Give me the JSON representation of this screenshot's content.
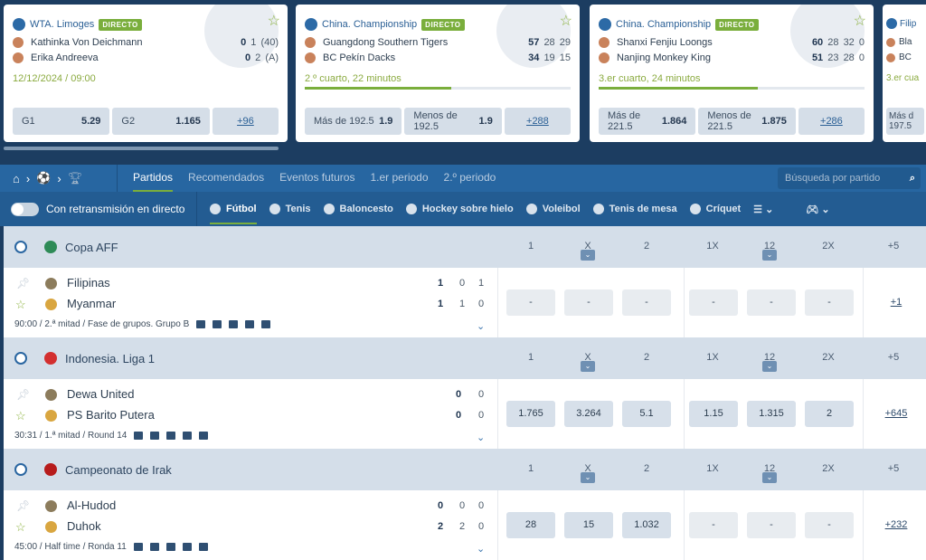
{
  "cards": [
    {
      "league": "WTA. Limoges",
      "badge": "DIRECTO",
      "sport_icon": "tennis-ball-icon",
      "teams": [
        "Kathinka Von Deichmann",
        "Erika Andreeva"
      ],
      "scores": [
        [
          "0",
          "1",
          "(40)"
        ],
        [
          "0",
          "2",
          "(A)"
        ]
      ],
      "status": "12/12/2024 / 09:00",
      "odds": [
        {
          "label": "G1",
          "value": "5.29"
        },
        {
          "label": "G2",
          "value": "1.165"
        }
      ],
      "more": "+96"
    },
    {
      "league": "China. Championship",
      "badge": "DIRECTO",
      "sport_icon": "basketball-icon",
      "teams": [
        "Guangdong Southern Tigers",
        "BC Pekín Dacks"
      ],
      "scores": [
        [
          "57",
          "28",
          "29"
        ],
        [
          "34",
          "19",
          "15"
        ]
      ],
      "status": "2.º cuarto, 22 minutos",
      "progress": 0.55,
      "odds": [
        {
          "label": "Más de 192.5",
          "value": "1.9"
        },
        {
          "label": "Menos de 192.5",
          "value": "1.9"
        }
      ],
      "more": "+288"
    },
    {
      "league": "China. Championship",
      "badge": "DIRECTO",
      "sport_icon": "basketball-icon",
      "teams": [
        "Shanxi Fenjiu Loongs",
        "Nanjing Monkey King"
      ],
      "scores": [
        [
          "60",
          "28",
          "32",
          "0"
        ],
        [
          "51",
          "23",
          "28",
          "0"
        ]
      ],
      "status": "3.er cuarto, 24 minutos",
      "progress": 0.6,
      "odds": [
        {
          "label": "Más de 221.5",
          "value": "1.864"
        },
        {
          "label": "Menos de 221.5",
          "value": "1.875"
        }
      ],
      "more": "+286"
    },
    {
      "league": "Filip",
      "teams": [
        "Bla",
        "BC"
      ],
      "status": "3.er cua",
      "odds": [
        {
          "label": "Más d 197.5",
          "value": ""
        }
      ]
    }
  ],
  "nav": {
    "tabs": [
      "Partidos",
      "Recomendados",
      "Eventos futuros",
      "1.er periodo",
      "2.º periodo"
    ],
    "active": 0,
    "search_placeholder": "Búsqueda por partido"
  },
  "sports_bar": {
    "live_toggle": "Con retransmisión en directo",
    "live_on": false,
    "sports": [
      "Fútbol",
      "Tenis",
      "Baloncesto",
      "Hockey sobre hielo",
      "Voleibol",
      "Tenis de mesa",
      "Críquet"
    ],
    "active": 0
  },
  "columns": [
    "1",
    "X",
    "2",
    "1X",
    "12",
    "2X",
    "+5"
  ],
  "sections": [
    {
      "league": "Copa AFF",
      "flag_color": "#2e8b57",
      "teams": [
        "Filipinas",
        "Myanmar"
      ],
      "scores": [
        [
          "1",
          "0",
          "1"
        ],
        [
          "1",
          "1",
          "0"
        ]
      ],
      "info": "90:00 / 2.ª mitad / Fase de grupos. Grupo B",
      "odds": [
        "-",
        "-",
        "-",
        "-",
        "-",
        "-"
      ],
      "more": "+1"
    },
    {
      "league": "Indonesia. Liga 1",
      "flag_color": "#d32f2f",
      "teams": [
        "Dewa United",
        "PS Barito Putera"
      ],
      "scores": [
        [
          "0",
          "0"
        ],
        [
          "0",
          "0"
        ]
      ],
      "info": "30:31 / 1.ª mitad / Round 14",
      "odds": [
        "1.765",
        "3.264",
        "5.1",
        "1.15",
        "1.315",
        "2"
      ],
      "more": "+645"
    },
    {
      "league": "Campeonato de Irak",
      "flag_color": "#b71c1c",
      "teams": [
        "Al-Hudod",
        "Duhok"
      ],
      "scores": [
        [
          "0",
          "0",
          "0"
        ],
        [
          "2",
          "2",
          "0"
        ]
      ],
      "info": "45:00 / Half time / Ronda 11",
      "odds": [
        "28",
        "15",
        "1.032",
        "-",
        "-",
        "-"
      ],
      "more": "+232"
    }
  ],
  "colors": {
    "navy": "#1c3d61",
    "nav": "#2766a1",
    "accent_green": "#7aae3c"
  }
}
